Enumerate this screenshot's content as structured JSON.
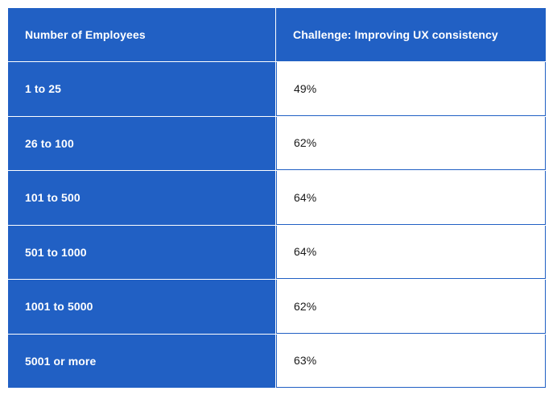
{
  "table": {
    "headers": [
      "Number of Employees",
      "Challenge: Improving UX consistency"
    ],
    "rows": [
      {
        "employees": "1 to 25",
        "value": "49%"
      },
      {
        "employees": "26 to 100",
        "value": "62%"
      },
      {
        "employees": "101 to 500",
        "value": "64%"
      },
      {
        "employees": "501 to 1000",
        "value": "64%"
      },
      {
        "employees": "1001 to 5000",
        "value": "62%"
      },
      {
        "employees": "5001 or more",
        "value": "63%"
      }
    ]
  },
  "colors": {
    "header_bg": "#2160c4",
    "text_light": "#ffffff",
    "text_dark": "#1a1a1a"
  }
}
